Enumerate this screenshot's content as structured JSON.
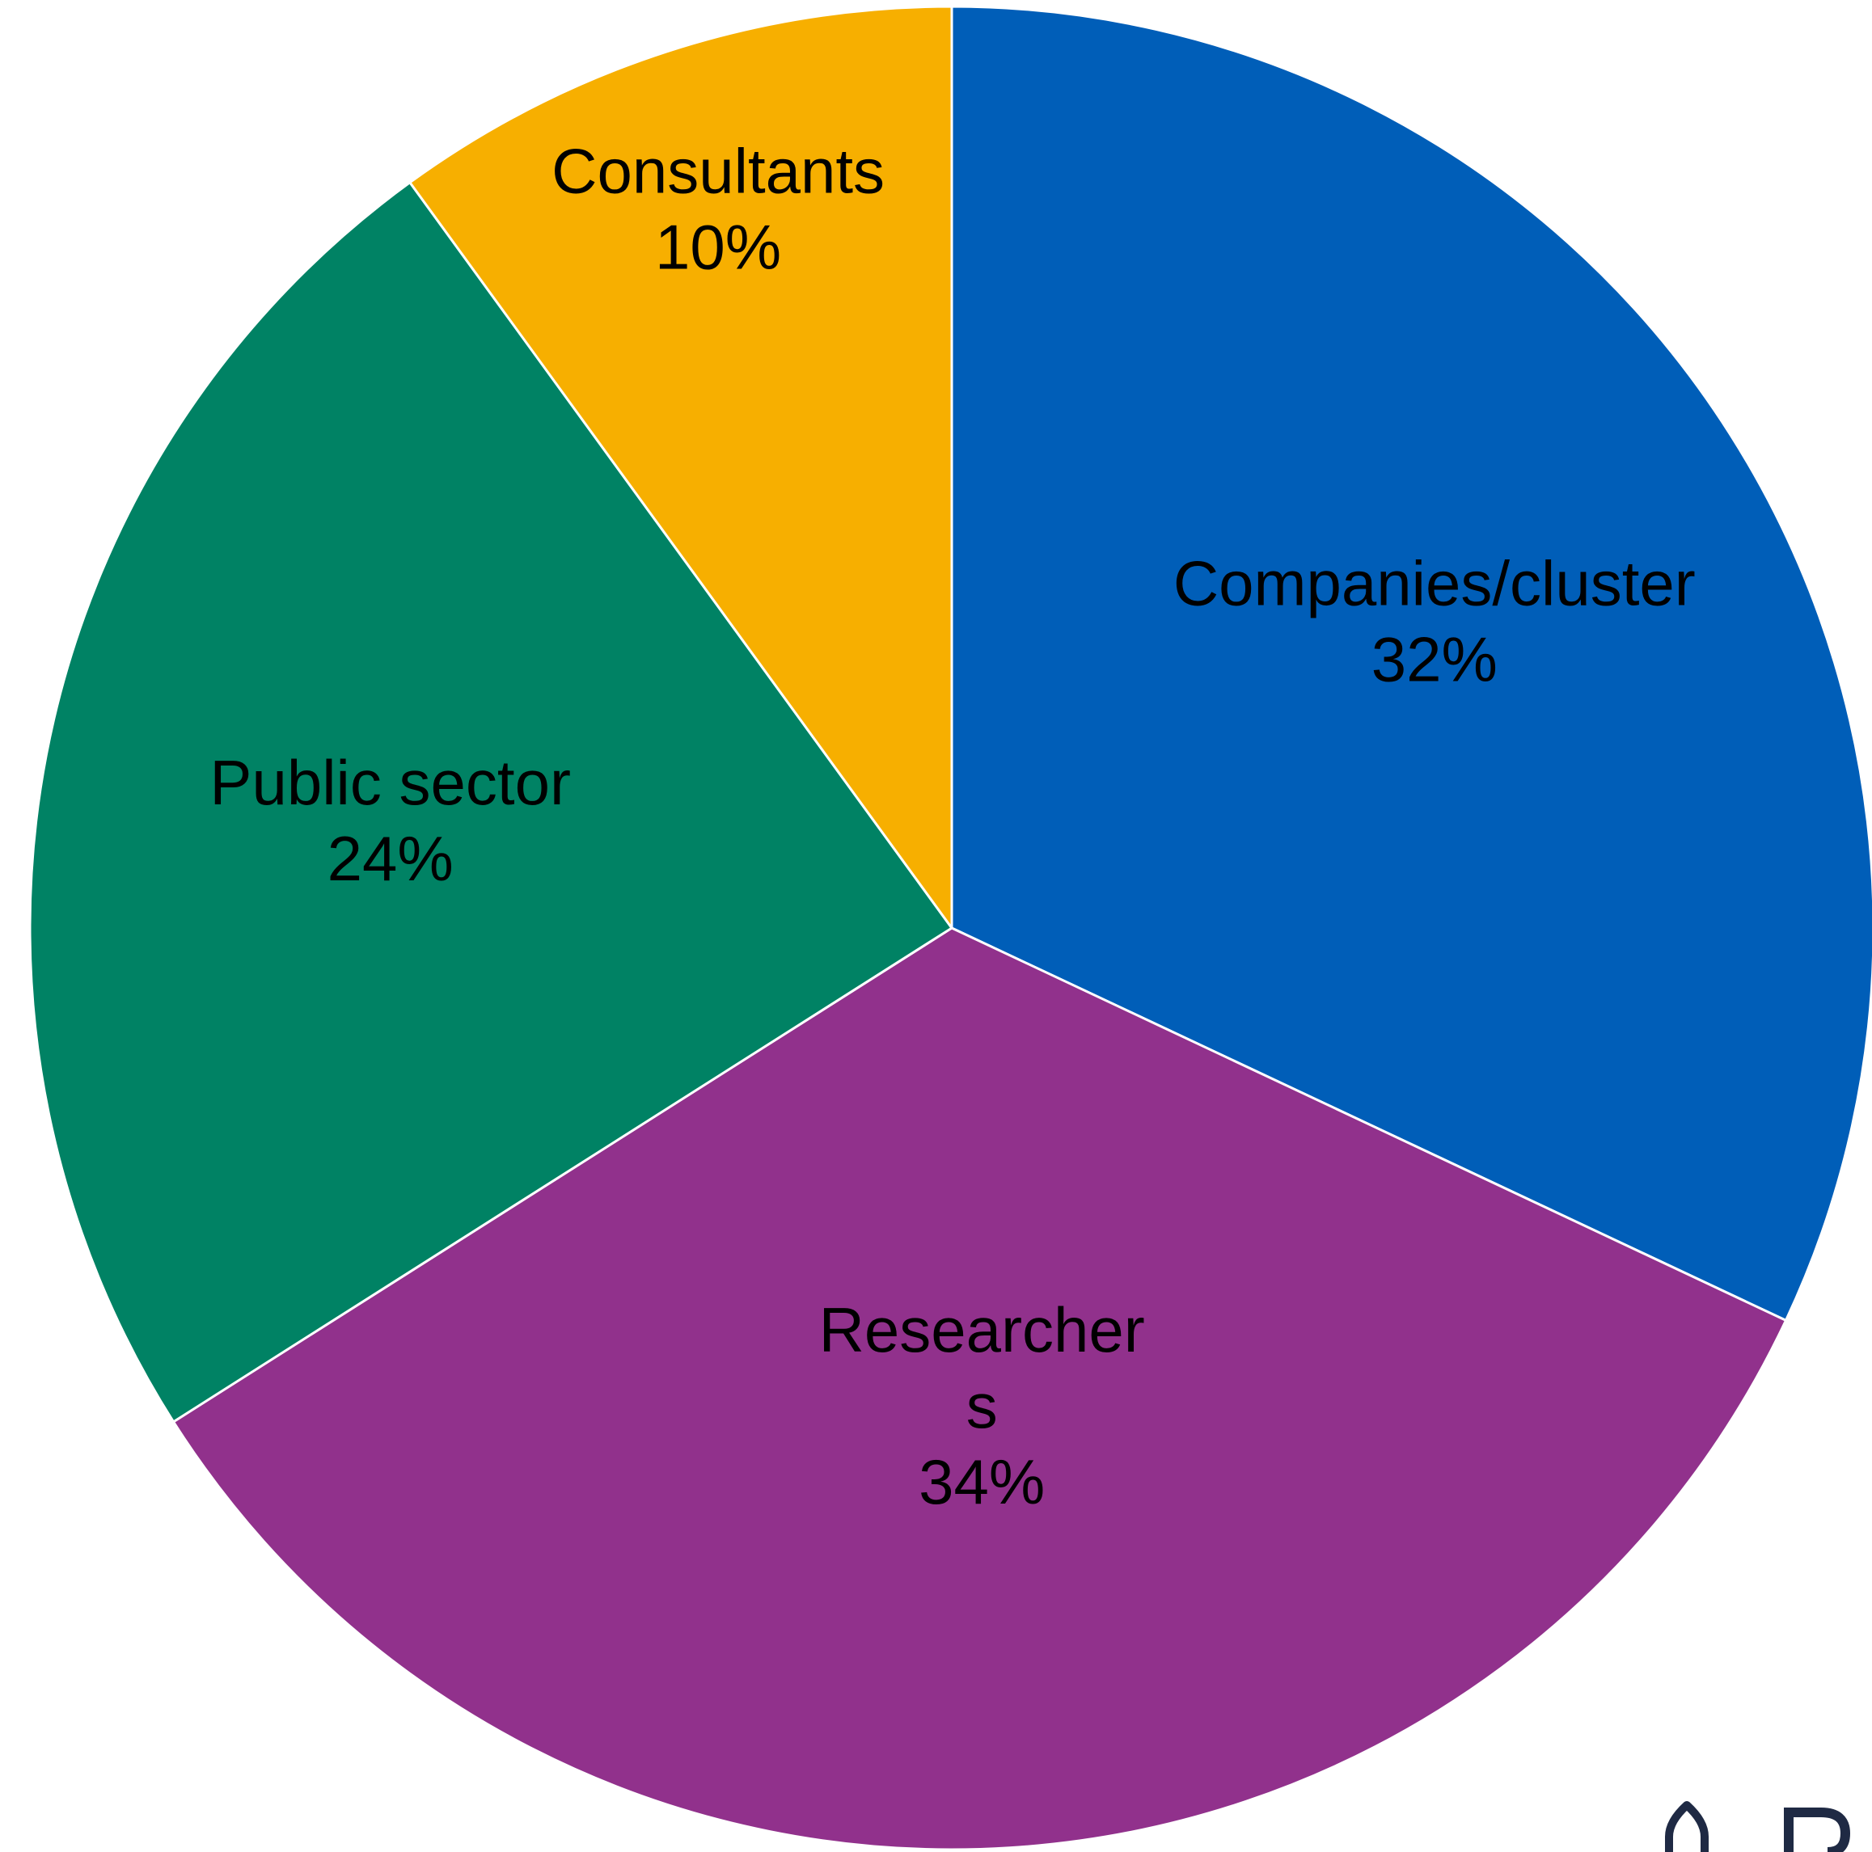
{
  "chart_data": {
    "type": "pie",
    "slices": [
      {
        "label": "Companies/cluster",
        "label_lines": [
          "Companies/cluster"
        ],
        "value": 32,
        "value_label": "32%",
        "color": "#005EB8"
      },
      {
        "label": "Researchers",
        "label_lines": [
          "Researcher",
          "s"
        ],
        "value": 34,
        "value_label": "34%",
        "color": "#91318C"
      },
      {
        "label": "Public sector",
        "label_lines": [
          "Public sector"
        ],
        "value": 24,
        "value_label": "24%",
        "color": "#008264"
      },
      {
        "label": "Consultants",
        "label_lines": [
          "Consultants"
        ],
        "value": 10,
        "value_label": "10%",
        "color": "#F7AF00"
      }
    ],
    "start_angle": "12 o'clock",
    "direction": "clockwise",
    "legend": "none",
    "data_labels": "inside"
  },
  "logo": {
    "color": "#1F2A44"
  }
}
